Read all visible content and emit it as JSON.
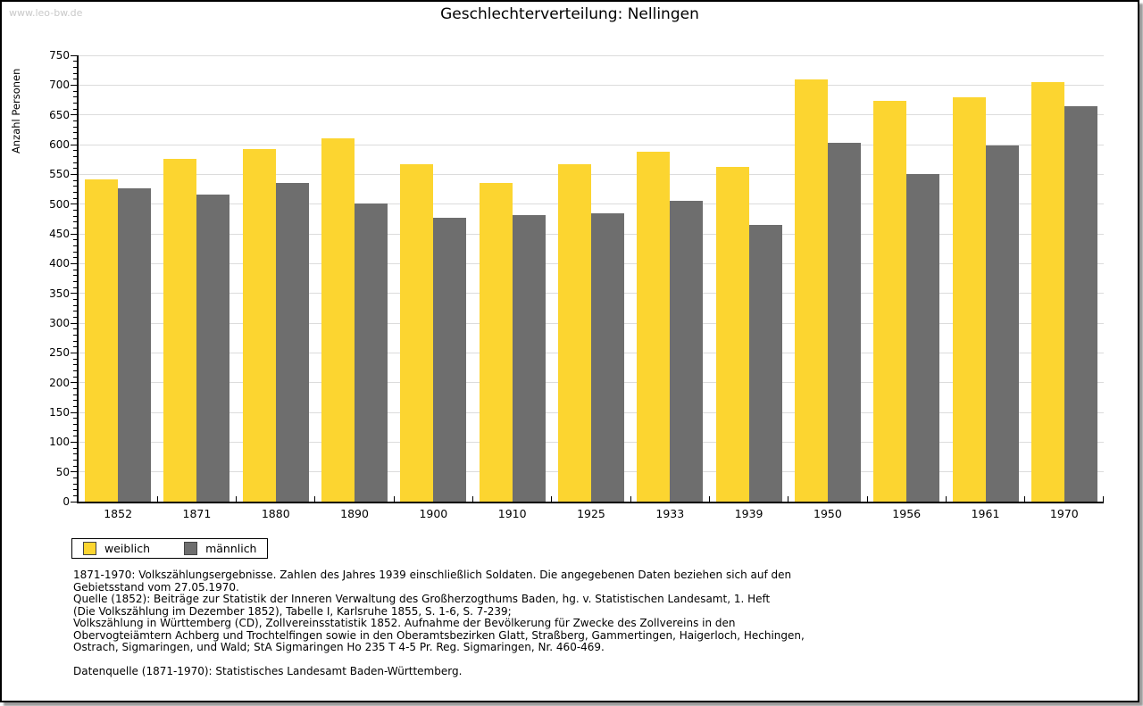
{
  "page": {
    "watermark": "www.leo-bw.de",
    "title": "Geschlechterverteilung: Nellingen"
  },
  "chart_data": {
    "type": "bar",
    "title": "Geschlechterverteilung: Nellingen",
    "xlabel": "",
    "ylabel": "Anzahl Personen",
    "ylim": [
      0,
      750
    ],
    "ytick_step": 50,
    "yminor_tick_step": 10,
    "grid": true,
    "legend_position": "bottom-left",
    "categories": [
      "1852",
      "1871",
      "1880",
      "1890",
      "1900",
      "1910",
      "1925",
      "1933",
      "1939",
      "1950",
      "1956",
      "1961",
      "1970"
    ],
    "series": [
      {
        "name": "weiblich",
        "color": "#fcd530",
        "values": [
          541,
          576,
          592,
          611,
          567,
          535,
          567,
          588,
          562,
          710,
          673,
          680,
          705
        ]
      },
      {
        "name": "männlich",
        "color": "#6e6e6e",
        "values": [
          526,
          516,
          535,
          501,
          477,
          481,
          484,
          505,
          465,
          603,
          551,
          598,
          665
        ]
      }
    ]
  },
  "legend": {
    "items": [
      {
        "label": "weiblich",
        "color": "#fcd530"
      },
      {
        "label": "männlich",
        "color": "#6e6e6e"
      }
    ]
  },
  "footer": {
    "notes": [
      "1871-1970: Volkszählungsergebnisse. Zahlen des Jahres 1939 einschließlich Soldaten. Die angegebenen Daten beziehen sich auf den",
      "Gebietsstand vom 27.05.1970.",
      "Quelle (1852): Beiträge zur Statistik der Inneren Verwaltung des Großherzogthums Baden, hg. v. Statistischen Landesamt, 1. Heft",
      "(Die Volkszählung im Dezember 1852), Tabelle I, Karlsruhe 1855, S. 1-6, S. 7-239;",
      "Volkszählung in Württemberg (CD), Zollvereinsstatistik 1852. Aufnahme der Bevölkerung für Zwecke des Zollvereins in den",
      "Obervogteiämtern Achberg und Trochtelfingen sowie in den Oberamtsbezirken Glatt, Straßberg, Gammertingen, Haigerloch, Hechingen,",
      "Ostrach, Sigmaringen, und Wald; StA Sigmaringen Ho 235 T 4-5 Pr. Reg. Sigmaringen, Nr. 460-469."
    ],
    "datasource": "Datenquelle (1871-1970): Statistisches Landesamt Baden-Württemberg."
  },
  "colors": {
    "background": "#ffffff",
    "axis": "#000000",
    "grid": "#dcdcdc",
    "watermark": "#c9c9c9",
    "frame_border": "#000000",
    "frame_shadow": "#9b9b9b"
  }
}
